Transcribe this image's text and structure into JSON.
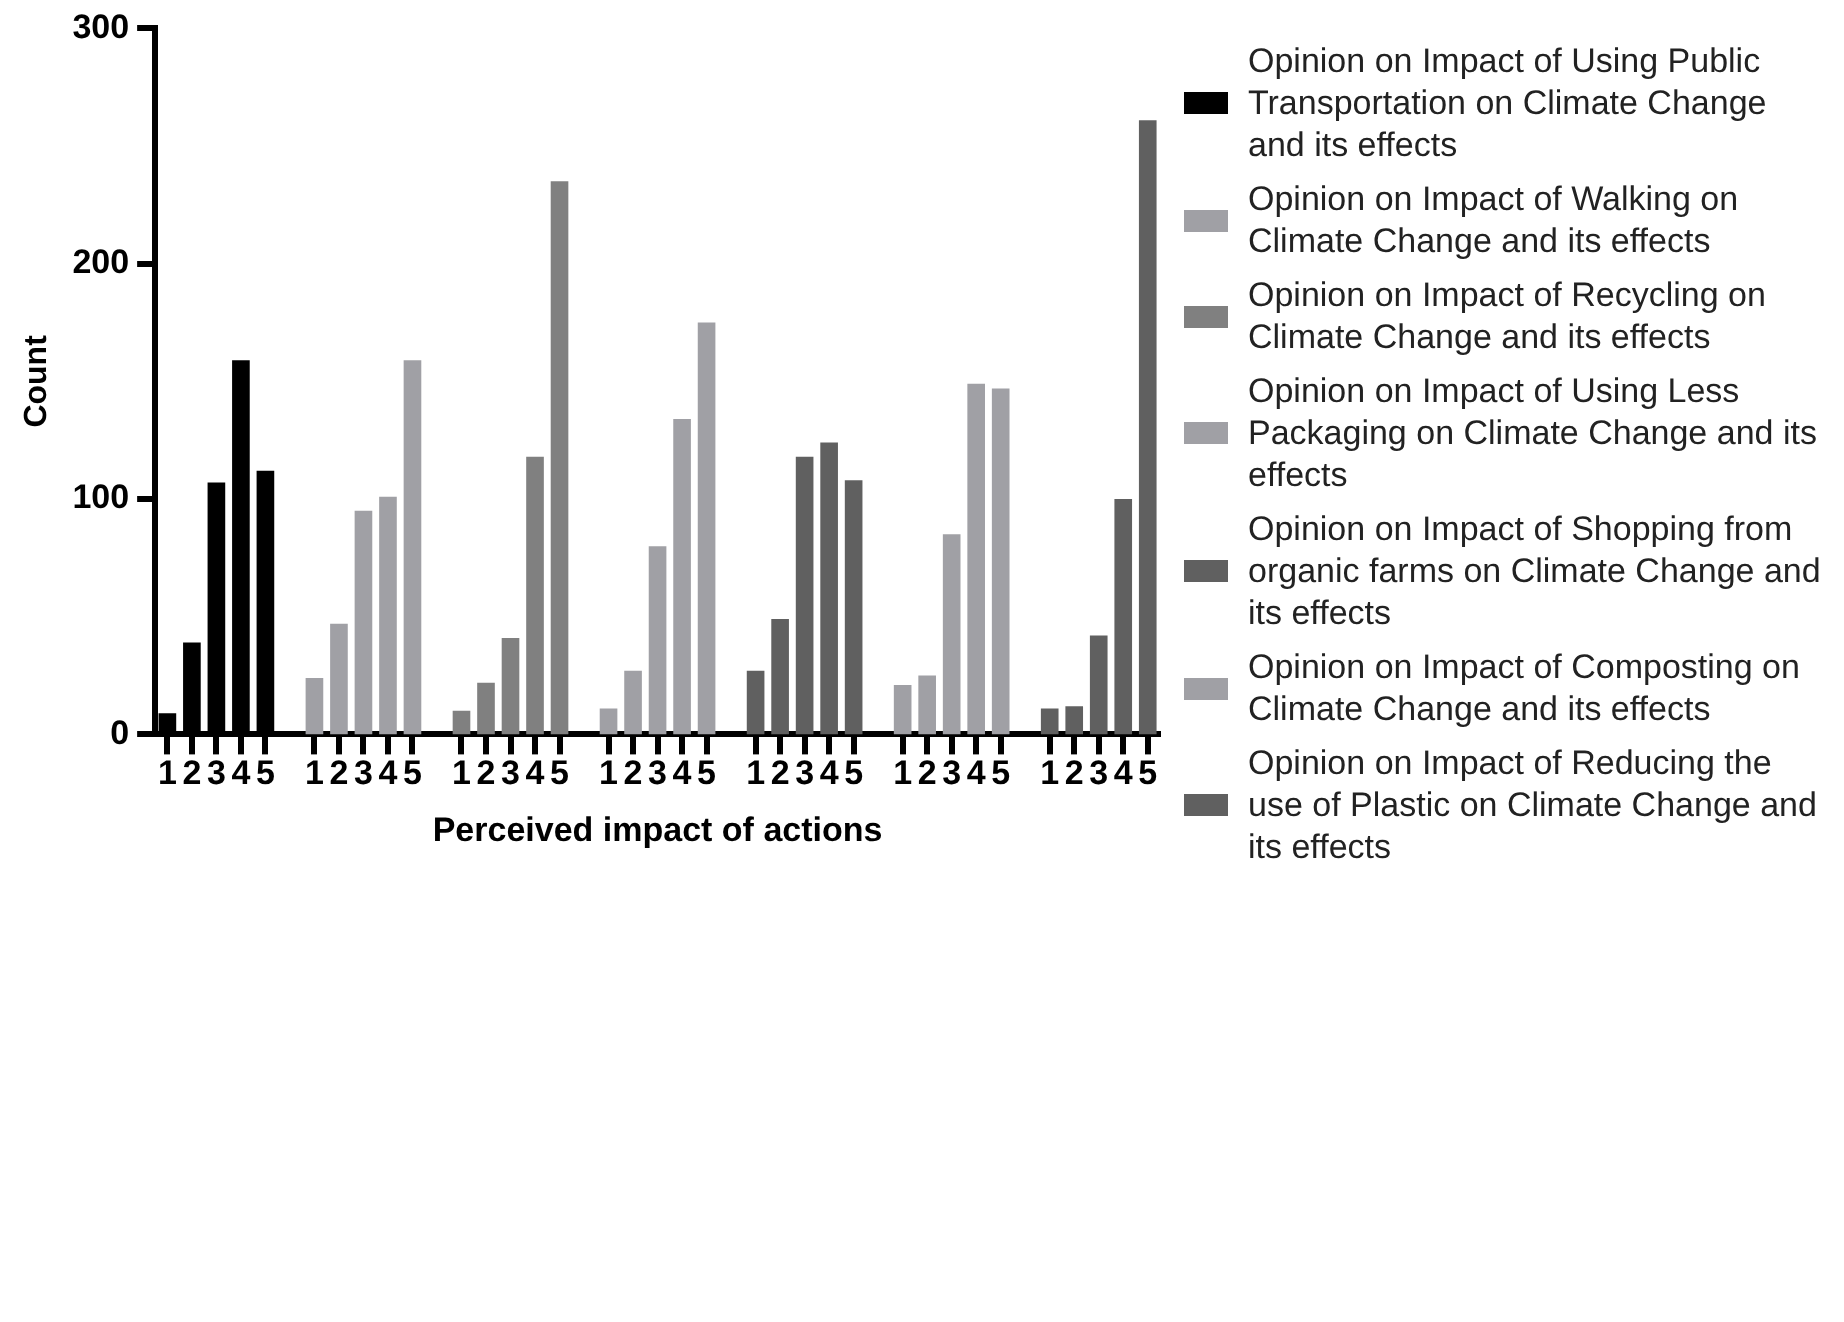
{
  "chart_data": {
    "type": "bar",
    "xlabel": "Perceived impact of actions",
    "ylabel": "Count",
    "legend": "right",
    "grid": false,
    "categories": [
      "1",
      "2",
      "3",
      "4",
      "5",
      null,
      "1",
      "2",
      "3",
      "4",
      "5",
      null,
      "1",
      "2",
      "3",
      "4",
      "5",
      null,
      "1",
      "2",
      "3",
      "4",
      "5",
      null,
      "1",
      "2",
      "3",
      "4",
      "5",
      null,
      "1",
      "2",
      "3",
      "4",
      "5",
      null,
      "1",
      "2",
      "3",
      "4",
      "5"
    ],
    "ylim": [
      0,
      300
    ],
    "yticks": [
      0,
      100,
      200,
      300
    ],
    "series": [
      {
        "name": "Opinion on Impact of Using Public Transportation on Climate Change and its effects",
        "color": "#000000",
        "values": [
          9,
          39,
          107,
          159,
          112,
          null,
          null,
          null,
          null,
          null,
          null,
          null,
          null,
          null,
          null,
          null,
          null,
          null,
          null,
          null,
          null,
          null,
          null,
          null,
          null,
          null,
          null,
          null,
          null,
          null,
          null,
          null,
          null,
          null,
          null,
          null,
          null,
          null,
          null,
          null,
          null
        ]
      },
      {
        "name": "Opinion on Impact of Walking on Climate Change and its effects",
        "color": "#a0a0a5",
        "values": [
          null,
          null,
          null,
          null,
          null,
          null,
          24,
          47,
          95,
          101,
          159,
          null,
          null,
          null,
          null,
          null,
          null,
          null,
          null,
          null,
          null,
          null,
          null,
          null,
          null,
          null,
          null,
          null,
          null,
          null,
          null,
          null,
          null,
          null,
          null,
          null,
          null,
          null,
          null,
          null,
          null
        ]
      },
      {
        "name": "Opinion on Impact of Recycling on Climate Change and its effects",
        "color": "#808080",
        "values": [
          null,
          null,
          null,
          null,
          null,
          null,
          null,
          null,
          null,
          null,
          null,
          null,
          10,
          22,
          41,
          118,
          235,
          null,
          null,
          null,
          null,
          null,
          null,
          null,
          null,
          null,
          null,
          null,
          null,
          null,
          null,
          null,
          null,
          null,
          null,
          null,
          null,
          null,
          null,
          null,
          null
        ]
      },
      {
        "name": "Opinion on Impact of Using Less Packaging on Climate Change and its effects",
        "color": "#a0a0a5",
        "values": [
          null,
          null,
          null,
          null,
          null,
          null,
          null,
          null,
          null,
          null,
          null,
          null,
          null,
          null,
          null,
          null,
          null,
          null,
          11,
          27,
          80,
          134,
          175,
          null,
          null,
          null,
          null,
          null,
          null,
          null,
          null,
          null,
          null,
          null,
          null,
          null,
          null,
          null,
          null,
          null,
          null
        ]
      },
      {
        "name": "Opinion on Impact of Shopping from organic farms on Climate Change and its effects",
        "color": "#606060",
        "values": [
          null,
          null,
          null,
          null,
          null,
          null,
          null,
          null,
          null,
          null,
          null,
          null,
          null,
          null,
          null,
          null,
          null,
          null,
          null,
          null,
          null,
          null,
          null,
          null,
          27,
          49,
          118,
          124,
          108,
          null,
          null,
          null,
          null,
          null,
          null,
          null,
          null,
          null,
          null,
          null,
          null
        ]
      },
      {
        "name": "Opinion on Impact of Composting on Climate Change and its effects",
        "color": "#a0a0a5",
        "values": [
          null,
          null,
          null,
          null,
          null,
          null,
          null,
          null,
          null,
          null,
          null,
          null,
          null,
          null,
          null,
          null,
          null,
          null,
          null,
          null,
          null,
          null,
          null,
          null,
          null,
          null,
          null,
          null,
          null,
          null,
          21,
          25,
          85,
          149,
          147,
          null,
          null,
          null,
          null,
          null,
          null
        ]
      },
      {
        "name": "Opinion on Impact of Reducing the use of Plastic on Climate Change and its effects",
        "color": "#606060",
        "values": [
          null,
          null,
          null,
          null,
          null,
          null,
          null,
          null,
          null,
          null,
          null,
          null,
          null,
          null,
          null,
          null,
          null,
          null,
          null,
          null,
          null,
          null,
          null,
          null,
          null,
          null,
          null,
          null,
          null,
          null,
          null,
          null,
          null,
          null,
          null,
          null,
          11,
          12,
          42,
          100,
          261
        ]
      }
    ]
  }
}
